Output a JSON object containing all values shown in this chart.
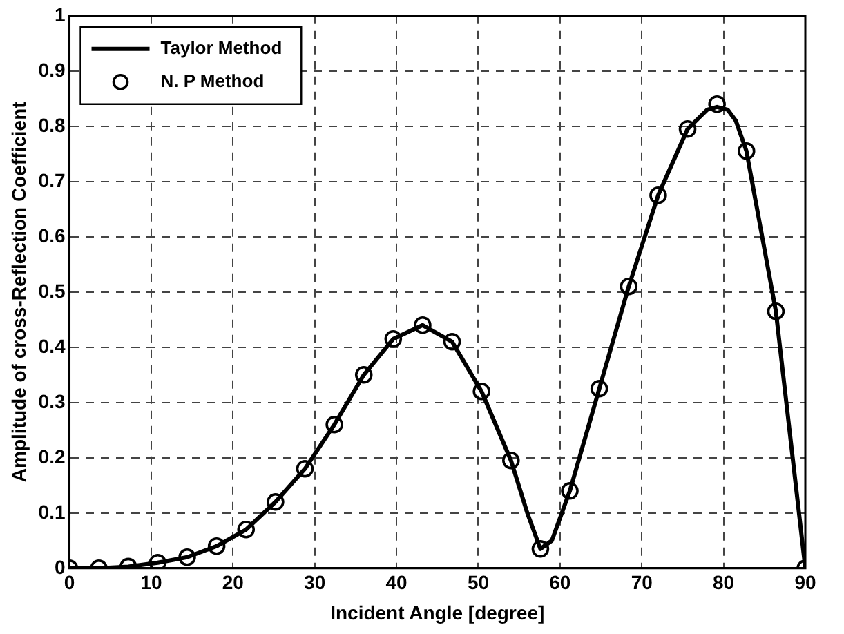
{
  "chart_data": {
    "type": "line",
    "xlabel": "Incident Angle [degree]",
    "ylabel": "Amplitude of cross-Reflection Coefficient",
    "xlim": [
      0,
      90
    ],
    "xticks": [
      0,
      10,
      20,
      30,
      40,
      50,
      60,
      70,
      80,
      90
    ],
    "ylim": [
      0,
      1
    ],
    "yticks": [
      0,
      0.1,
      0.2,
      0.3,
      0.4,
      0.5,
      0.6,
      0.7,
      0.8,
      0.9,
      1
    ],
    "grid": true,
    "legend": "top left",
    "series": [
      {
        "name": "Taylor Method",
        "type": "line",
        "color": "#000000",
        "marker": "none",
        "line_style": "solid",
        "x": [
          0,
          3.6,
          7.2,
          10.8,
          14.4,
          18,
          21.6,
          25.2,
          28.8,
          32.4,
          36,
          39.6,
          43.2,
          46.8,
          50.4,
          54,
          56,
          57.6,
          59,
          61.2,
          64.8,
          68.4,
          72,
          75.6,
          78,
          79.2,
          80.5,
          81.5,
          82.8,
          86.4,
          90
        ],
        "values": [
          0,
          0,
          0.003,
          0.01,
          0.02,
          0.04,
          0.07,
          0.12,
          0.18,
          0.26,
          0.35,
          0.415,
          0.44,
          0.41,
          0.32,
          0.195,
          0.1,
          0.035,
          0.05,
          0.14,
          0.325,
          0.51,
          0.675,
          0.795,
          0.83,
          0.835,
          0.83,
          0.81,
          0.755,
          0.465,
          0
        ]
      },
      {
        "name": "N. P Method",
        "type": "scatter",
        "color": "#000000",
        "marker": "circle",
        "x": [
          0,
          3.6,
          7.2,
          10.8,
          14.4,
          18,
          21.6,
          25.2,
          28.8,
          32.4,
          36,
          39.6,
          43.2,
          46.8,
          50.4,
          54,
          57.6,
          61.2,
          64.8,
          68.4,
          72,
          75.6,
          79.2,
          82.8,
          86.4,
          90
        ],
        "values": [
          0,
          0,
          0.003,
          0.01,
          0.02,
          0.04,
          0.07,
          0.12,
          0.18,
          0.26,
          0.35,
          0.415,
          0.44,
          0.41,
          0.32,
          0.195,
          0.035,
          0.14,
          0.325,
          0.51,
          0.675,
          0.795,
          0.84,
          0.755,
          0.465,
          0
        ]
      }
    ]
  }
}
